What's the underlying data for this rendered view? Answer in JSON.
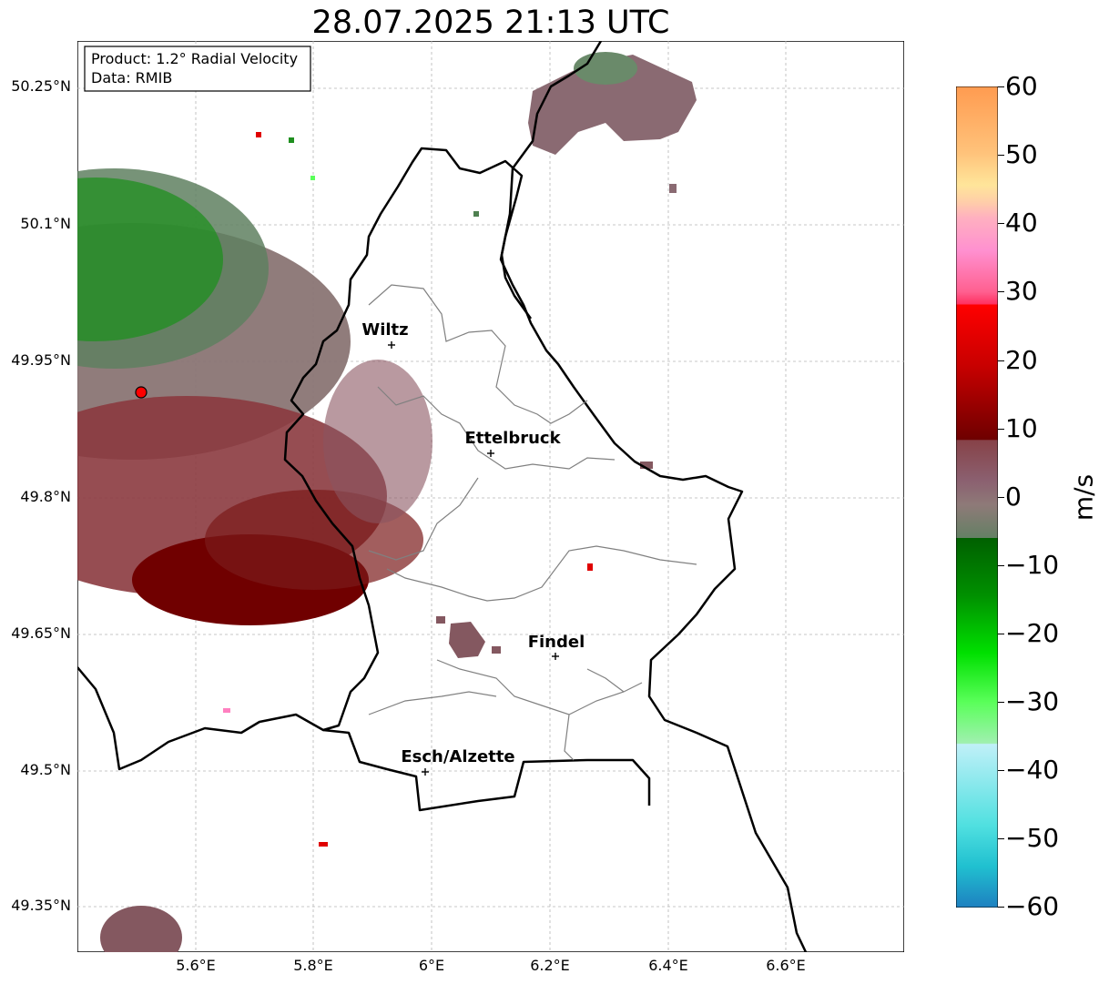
{
  "title": "28.07.2025 21:13 UTC",
  "infobox": {
    "product": "Product: 1.2° Radial Velocity",
    "data": "Data: RMIB"
  },
  "lat_labels": [
    "50.25°N",
    "50.1°N",
    "49.95°N",
    "49.8°N",
    "49.65°N",
    "49.5°N",
    "49.35°N"
  ],
  "lon_labels": [
    "5.6°E",
    "5.8°E",
    "6°E",
    "6.2°E",
    "6.4°E",
    "6.6°E"
  ],
  "cities": [
    {
      "name": "Wiltz"
    },
    {
      "name": "Ettelbruck"
    },
    {
      "name": "Findel"
    },
    {
      "name": "Esch/Alzette"
    }
  ],
  "colorbar": {
    "ticks": [
      "60",
      "50",
      "40",
      "30",
      "20",
      "10",
      "0",
      "−10",
      "−20",
      "−30",
      "−40",
      "−50",
      "−60"
    ],
    "unit": "m/s",
    "range": [
      -60,
      60
    ]
  },
  "colors": {
    "border": "#000000",
    "canton_border": "#808080",
    "radar_site": "#ff0000"
  }
}
